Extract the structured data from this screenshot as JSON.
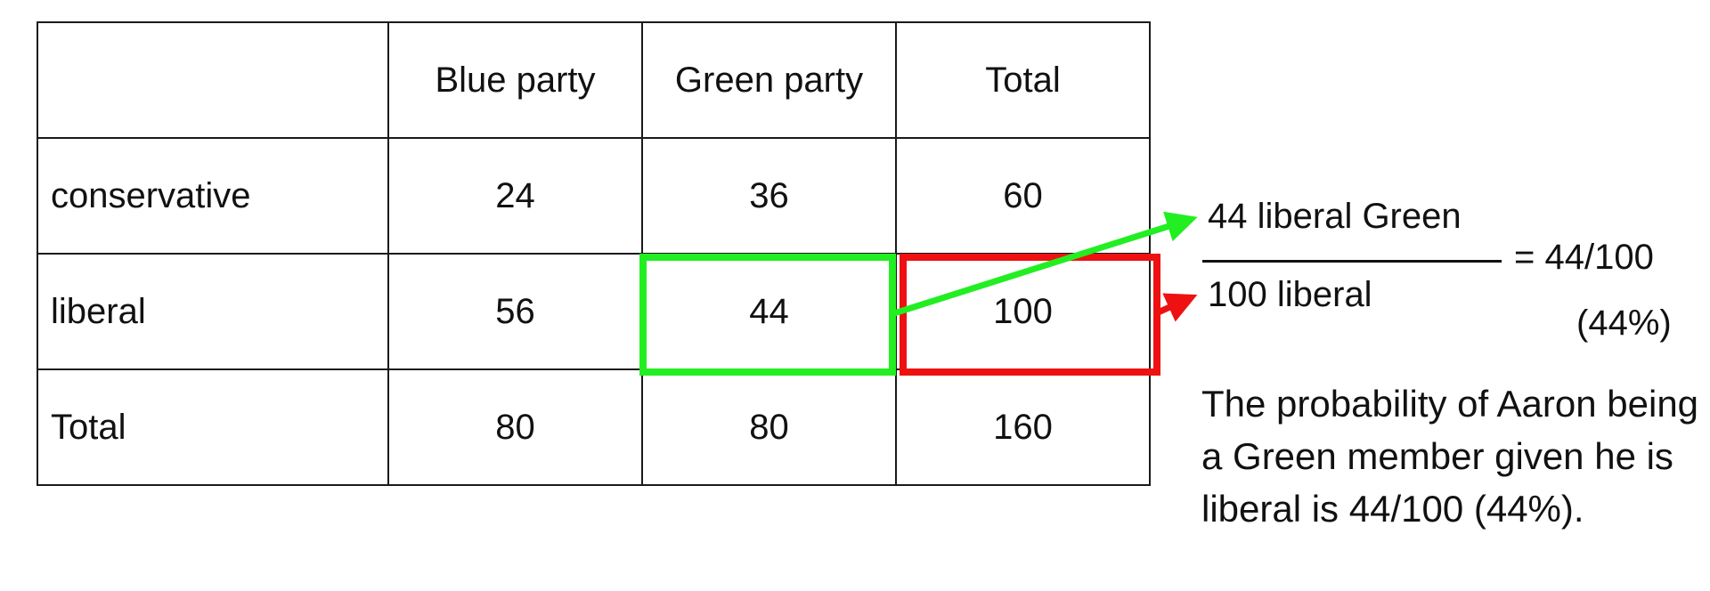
{
  "table": {
    "header": [
      "",
      "Blue party",
      "Green party",
      "Total"
    ],
    "rows": [
      {
        "label": "conservative",
        "cells": [
          "24",
          "36",
          "60"
        ]
      },
      {
        "label": "liberal",
        "cells": [
          "56",
          "44",
          "100"
        ]
      },
      {
        "label": "Total",
        "cells": [
          "80",
          "80",
          "160"
        ]
      }
    ]
  },
  "fraction": {
    "numerator": "44 liberal Green",
    "denominator": "100 liberal",
    "equals": "= 44/100",
    "percent": "(44%)"
  },
  "explanation": "The probability of Aaron being a Green member given he is liberal is 44/100 (44%).",
  "colors": {
    "highlight_numerator": "#22ee22",
    "highlight_denominator": "#ee1111"
  }
}
